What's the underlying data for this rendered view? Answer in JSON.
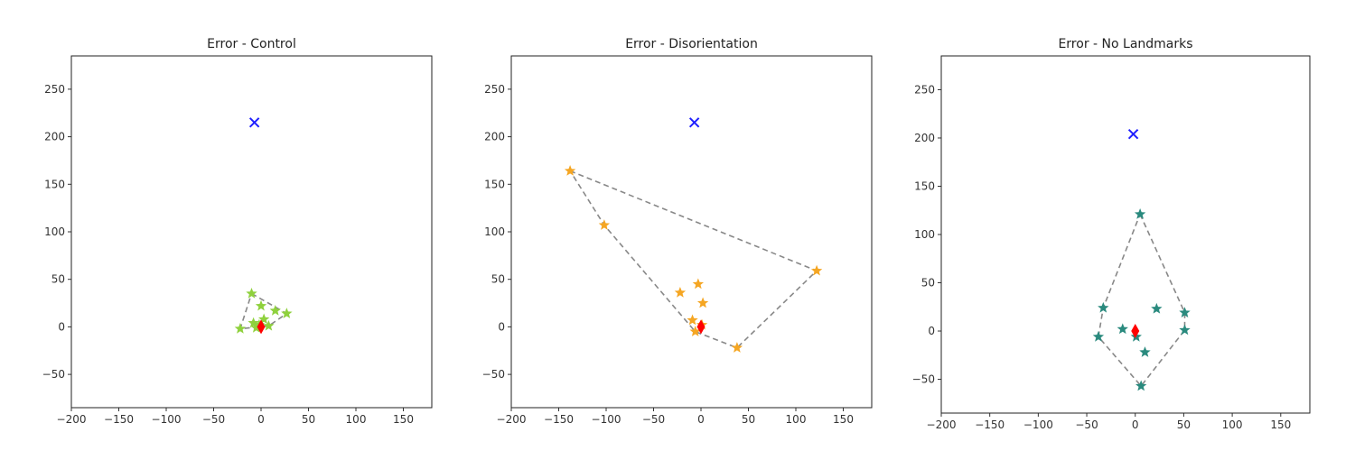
{
  "chart_data": [
    {
      "type": "scatter",
      "title": "Error - Control",
      "xlim": [
        -200,
        180
      ],
      "ylim": [
        -85,
        285
      ],
      "xticks": [
        -200,
        -150,
        -100,
        -50,
        0,
        50,
        100,
        150
      ],
      "yticks": [
        -50,
        0,
        50,
        100,
        150,
        200,
        250
      ],
      "target": {
        "x": -7,
        "y": 215,
        "color": "#1f1fff",
        "marker": "x"
      },
      "origin": {
        "x": 0,
        "y": 0,
        "color": "#ff0000",
        "marker": "diamond"
      },
      "points": [
        {
          "x": -10,
          "y": 35
        },
        {
          "x": 0,
          "y": 22
        },
        {
          "x": 15,
          "y": 17
        },
        {
          "x": 27,
          "y": 14
        },
        {
          "x": -22,
          "y": -2
        },
        {
          "x": -8,
          "y": 4
        },
        {
          "x": -5,
          "y": -1
        },
        {
          "x": 3,
          "y": 8
        },
        {
          "x": 8,
          "y": 1
        },
        {
          "x": -2,
          "y": 2
        }
      ],
      "point_color": "#8fd13d",
      "hull": [
        [
          -10,
          35
        ],
        [
          27,
          14
        ],
        [
          8,
          1
        ],
        [
          -22,
          -2
        ]
      ],
      "hull_color": "#888888"
    },
    {
      "type": "scatter",
      "title": "Error - Disorientation",
      "xlim": [
        -200,
        180
      ],
      "ylim": [
        -85,
        285
      ],
      "xticks": [
        -200,
        -150,
        -100,
        -50,
        0,
        50,
        100,
        150
      ],
      "yticks": [
        -50,
        0,
        50,
        100,
        150,
        200,
        250
      ],
      "target": {
        "x": -7,
        "y": 215,
        "color": "#1f1fff",
        "marker": "x"
      },
      "origin": {
        "x": 0,
        "y": 0,
        "color": "#ff0000",
        "marker": "diamond"
      },
      "points": [
        {
          "x": -138,
          "y": 164
        },
        {
          "x": -102,
          "y": 107
        },
        {
          "x": 122,
          "y": 59
        },
        {
          "x": 38,
          "y": -22
        },
        {
          "x": -22,
          "y": 36
        },
        {
          "x": -3,
          "y": 45
        },
        {
          "x": 2,
          "y": 25
        },
        {
          "x": -9,
          "y": 7
        },
        {
          "x": -6,
          "y": -5
        },
        {
          "x": 1,
          "y": 2
        }
      ],
      "point_color": "#f5a623",
      "hull": [
        [
          -138,
          164
        ],
        [
          122,
          59
        ],
        [
          38,
          -22
        ],
        [
          -6,
          -5
        ],
        [
          -102,
          107
        ]
      ],
      "hull_color": "#888888"
    },
    {
      "type": "scatter",
      "title": "Error - No Landmarks",
      "xlim": [
        -200,
        180
      ],
      "ylim": [
        -85,
        285
      ],
      "xticks": [
        -200,
        -150,
        -100,
        -50,
        0,
        50,
        100,
        150
      ],
      "yticks": [
        -50,
        0,
        50,
        100,
        150,
        200,
        250
      ],
      "target": {
        "x": -2,
        "y": 204,
        "color": "#1f1fff",
        "marker": "x"
      },
      "origin": {
        "x": 0,
        "y": 0,
        "color": "#ff0000",
        "marker": "diamond"
      },
      "points": [
        {
          "x": 5,
          "y": 121
        },
        {
          "x": 51,
          "y": 19
        },
        {
          "x": 51,
          "y": 1
        },
        {
          "x": 6,
          "y": -57
        },
        {
          "x": -38,
          "y": -6
        },
        {
          "x": -33,
          "y": 24
        },
        {
          "x": 22,
          "y": 23
        },
        {
          "x": -13,
          "y": 2
        },
        {
          "x": 10,
          "y": -22
        },
        {
          "x": 1,
          "y": -6
        }
      ],
      "point_color": "#2a8a7e",
      "hull": [
        [
          5,
          121
        ],
        [
          51,
          19
        ],
        [
          51,
          1
        ],
        [
          6,
          -57
        ],
        [
          -38,
          -6
        ],
        [
          -33,
          24
        ]
      ],
      "hull_color": "#888888"
    }
  ]
}
